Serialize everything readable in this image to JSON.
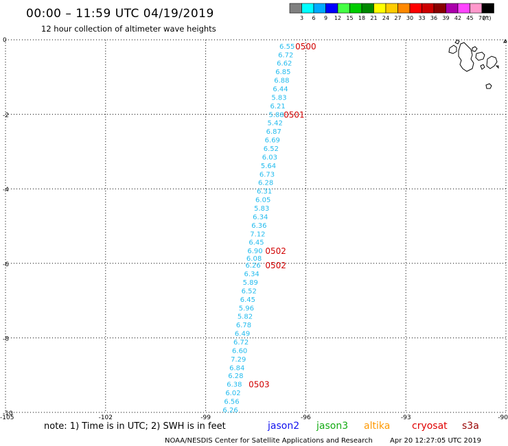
{
  "header": {
    "title": "00:00 – 11:59 UTC 04/19/2019",
    "subtitle": "12 hour collection of altimeter wave heights"
  },
  "legend": {
    "labels": [
      "3",
      "6",
      "9",
      "12",
      "15",
      "18",
      "21",
      "24",
      "27",
      "30",
      "33",
      "36",
      "39",
      "42",
      "45",
      "70"
    ],
    "unit": "(ft)",
    "colors": [
      "#808080",
      "#00ffff",
      "#00aaff",
      "#0000ff",
      "#44ff44",
      "#00cc00",
      "#008800",
      "#ffff00",
      "#ffcc00",
      "#ff8800",
      "#ff0000",
      "#cc0000",
      "#880000",
      "#aa00aa",
      "#ff44ff",
      "#ff99cc",
      "#000000"
    ]
  },
  "map": {
    "lon_labels": [
      "-105",
      "-102",
      "-99",
      "-96",
      "-93",
      "-90"
    ],
    "lat_labels": [
      "0",
      "-2",
      "-4",
      "-6",
      "-8",
      "-10"
    ],
    "lon_values": [
      -105,
      -102,
      -99,
      -96,
      -93,
      -90
    ],
    "lat_values": [
      0,
      -2,
      -4,
      -6,
      -8,
      -10
    ],
    "value_color": "#22bbee",
    "time_color": "#d10000",
    "wave_heights": [
      {
        "text": "6.55",
        "lon": -96.56,
        "lat": -0.17
      },
      {
        "text": "6.72",
        "lon": -96.6,
        "lat": -0.4
      },
      {
        "text": "6.62",
        "lon": -96.64,
        "lat": -0.62
      },
      {
        "text": "6.85",
        "lon": -96.68,
        "lat": -0.85
      },
      {
        "text": "6.88",
        "lon": -96.72,
        "lat": -1.08
      },
      {
        "text": "6.44",
        "lon": -96.76,
        "lat": -1.31
      },
      {
        "text": "5.83",
        "lon": -96.8,
        "lat": -1.54
      },
      {
        "text": "6.21",
        "lon": -96.84,
        "lat": -1.77
      },
      {
        "text": "5.88",
        "lon": -96.88,
        "lat": -2.0
      },
      {
        "text": "5.42",
        "lon": -96.92,
        "lat": -2.22
      },
      {
        "text": "6.87",
        "lon": -96.96,
        "lat": -2.45
      },
      {
        "text": "6.69",
        "lon": -97.0,
        "lat": -2.68
      },
      {
        "text": "6.52",
        "lon": -97.04,
        "lat": -2.91
      },
      {
        "text": "6.03",
        "lon": -97.08,
        "lat": -3.14
      },
      {
        "text": "5.64",
        "lon": -97.12,
        "lat": -3.37
      },
      {
        "text": "6.73",
        "lon": -97.16,
        "lat": -3.6
      },
      {
        "text": "6.28",
        "lon": -97.2,
        "lat": -3.82
      },
      {
        "text": "6.31",
        "lon": -97.24,
        "lat": -4.05
      },
      {
        "text": "6.05",
        "lon": -97.28,
        "lat": -4.28
      },
      {
        "text": "5.83",
        "lon": -97.32,
        "lat": -4.51
      },
      {
        "text": "6.34",
        "lon": -97.36,
        "lat": -4.74
      },
      {
        "text": "6.36",
        "lon": -97.4,
        "lat": -4.97
      },
      {
        "text": "7.12",
        "lon": -97.44,
        "lat": -5.2
      },
      {
        "text": "6.45",
        "lon": -97.48,
        "lat": -5.42
      },
      {
        "text": "6.90",
        "lon": -97.52,
        "lat": -5.65
      },
      {
        "text": "6.08",
        "lon": -97.55,
        "lat": -5.86
      },
      {
        "text": "6.26",
        "lon": -97.58,
        "lat": -6.04
      },
      {
        "text": "6.34",
        "lon": -97.62,
        "lat": -6.27
      },
      {
        "text": "5.89",
        "lon": -97.66,
        "lat": -6.5
      },
      {
        "text": "6.52",
        "lon": -97.7,
        "lat": -6.73
      },
      {
        "text": "6.45",
        "lon": -97.74,
        "lat": -6.96
      },
      {
        "text": "5.96",
        "lon": -97.78,
        "lat": -7.19
      },
      {
        "text": "5.82",
        "lon": -97.82,
        "lat": -7.41
      },
      {
        "text": "6.78",
        "lon": -97.86,
        "lat": -7.64
      },
      {
        "text": "6.49",
        "lon": -97.9,
        "lat": -7.87
      },
      {
        "text": "6.72",
        "lon": -97.94,
        "lat": -8.1
      },
      {
        "text": "6.60",
        "lon": -97.98,
        "lat": -8.33
      },
      {
        "text": "7.29",
        "lon": -98.02,
        "lat": -8.56
      },
      {
        "text": "6.84",
        "lon": -98.06,
        "lat": -8.79
      },
      {
        "text": "6.28",
        "lon": -98.1,
        "lat": -9.01
      },
      {
        "text": "6.38",
        "lon": -98.14,
        "lat": -9.24
      },
      {
        "text": "6.02",
        "lon": -98.18,
        "lat": -9.47
      },
      {
        "text": "6.56",
        "lon": -98.22,
        "lat": -9.7
      },
      {
        "text": "6.26",
        "lon": -98.26,
        "lat": -9.93
      }
    ],
    "time_labels": [
      {
        "text": "0500",
        "lon": -96.0,
        "lat": -0.17
      },
      {
        "text": "0501",
        "lon": -96.35,
        "lat": -2.0
      },
      {
        "text": "0502",
        "lon": -96.9,
        "lat": -5.65
      },
      {
        "text": "0502",
        "lon": -96.9,
        "lat": -6.04
      },
      {
        "text": "0503",
        "lon": -97.4,
        "lat": -9.24
      }
    ]
  },
  "footer": {
    "note": "note: 1) Time is in UTC; 2) SWH is in feet",
    "satellites": [
      {
        "name": "jason2",
        "color": "#1010ee"
      },
      {
        "name": "jason3",
        "color": "#11aa11"
      },
      {
        "name": "altika",
        "color": "#ff9900"
      },
      {
        "name": "cryosat",
        "color": "#e00000"
      },
      {
        "name": "s3a",
        "color": "#990000"
      }
    ],
    "credit": "NOAA/NESDIS Center for Satellite Applications and Research",
    "timestamp": "Apr 20 12:27:05 UTC 2019"
  }
}
